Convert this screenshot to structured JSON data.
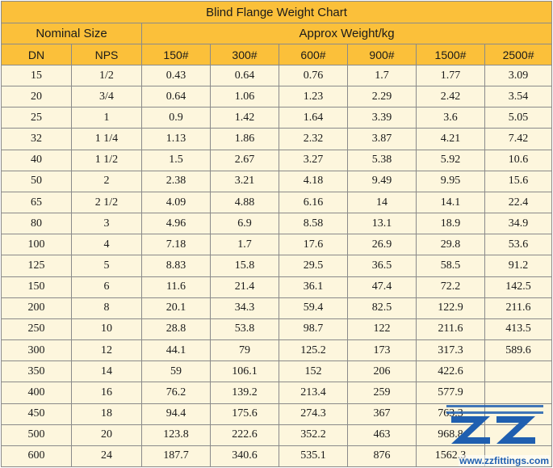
{
  "title": "Blind Flange Weight Chart",
  "headers": {
    "nominal_size": "Nominal Size",
    "approx_weight": "Approx Weight/kg",
    "dn": "DN",
    "nps": "NPS",
    "classes": [
      "150#",
      "300#",
      "600#",
      "900#",
      "1500#",
      "2500#"
    ]
  },
  "rows": [
    [
      "15",
      "1/2",
      "0.43",
      "0.64",
      "0.76",
      "1.7",
      "1.77",
      "3.09"
    ],
    [
      "20",
      "3/4",
      "0.64",
      "1.06",
      "1.23",
      "2.29",
      "2.42",
      "3.54"
    ],
    [
      "25",
      "1",
      "0.9",
      "1.42",
      "1.64",
      "3.39",
      "3.6",
      "5.05"
    ],
    [
      "32",
      "1 1/4",
      "1.13",
      "1.86",
      "2.32",
      "3.87",
      "4.21",
      "7.42"
    ],
    [
      "40",
      "1 1/2",
      "1.5",
      "2.67",
      "3.27",
      "5.38",
      "5.92",
      "10.6"
    ],
    [
      "50",
      "2",
      "2.38",
      "3.21",
      "4.18",
      "9.49",
      "9.95",
      "15.6"
    ],
    [
      "65",
      "2 1/2",
      "4.09",
      "4.88",
      "6.16",
      "14",
      "14.1",
      "22.4"
    ],
    [
      "80",
      "3",
      "4.96",
      "6.9",
      "8.58",
      "13.1",
      "18.9",
      "34.9"
    ],
    [
      "100",
      "4",
      "7.18",
      "1.7",
      "17.6",
      "26.9",
      "29.8",
      "53.6"
    ],
    [
      "125",
      "5",
      "8.83",
      "15.8",
      "29.5",
      "36.5",
      "58.5",
      "91.2"
    ],
    [
      "150",
      "6",
      "11.6",
      "21.4",
      "36.1",
      "47.4",
      "72.2",
      "142.5"
    ],
    [
      "200",
      "8",
      "20.1",
      "34.3",
      "59.4",
      "82.5",
      "122.9",
      "211.6"
    ],
    [
      "250",
      "10",
      "28.8",
      "53.8",
      "98.7",
      "122",
      "211.6",
      "413.5"
    ],
    [
      "300",
      "12",
      "44.1",
      "79",
      "125.2",
      "173",
      "317.3",
      "589.6"
    ],
    [
      "350",
      "14",
      "59",
      "106.1",
      "152",
      "206",
      "422.6",
      ""
    ],
    [
      "400",
      "16",
      "76.2",
      "139.2",
      "213.4",
      "259",
      "577.9",
      ""
    ],
    [
      "450",
      "18",
      "94.4",
      "175.6",
      "274.3",
      "367",
      "763.3",
      ""
    ],
    [
      "500",
      "20",
      "123.8",
      "222.6",
      "352.2",
      "463",
      "968.8",
      ""
    ],
    [
      "600",
      "24",
      "187.7",
      "340.6",
      "535.1",
      "876",
      "1562.3",
      ""
    ]
  ],
  "watermark": {
    "logo": "ZZ",
    "text": "www.zzfittings.com"
  },
  "colors": {
    "header_bg": "#fbc03a",
    "cell_bg": "#fdf6dd",
    "border": "#8a8a8a",
    "watermark_blue": "#1f5fb0"
  }
}
